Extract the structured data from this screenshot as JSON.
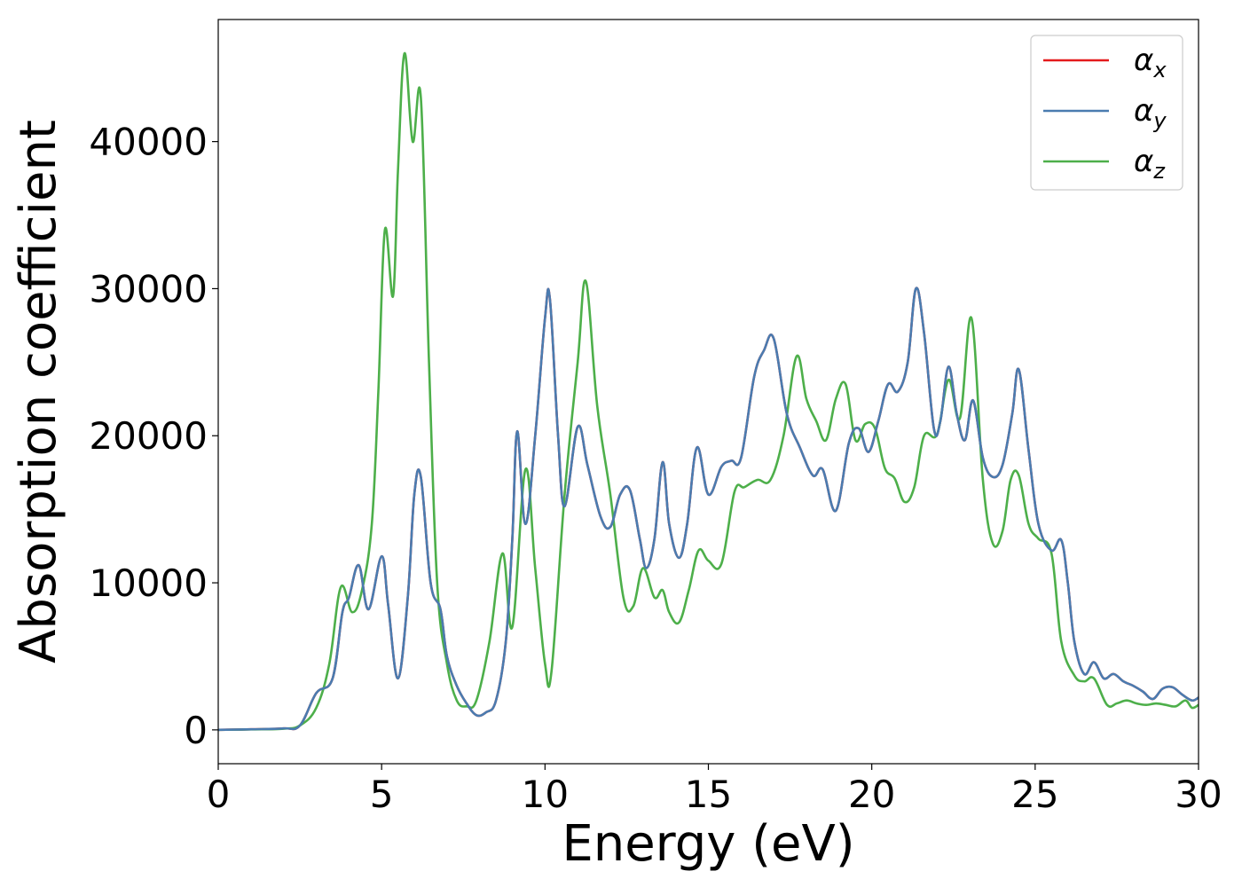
{
  "chart_data": {
    "type": "line",
    "title": "",
    "xlabel": "Energy (eV)",
    "ylabel": "Absorption coefficient",
    "xlim": [
      0,
      30
    ],
    "ylim": [
      -2300,
      48300
    ],
    "xticks": [
      0,
      5,
      10,
      15,
      20,
      25,
      30
    ],
    "yticks": [
      0,
      10000,
      20000,
      30000,
      40000
    ],
    "xtick_labels": [
      "0",
      "5",
      "10",
      "15",
      "20",
      "25",
      "30"
    ],
    "ytick_labels": [
      "0",
      "10000",
      "20000",
      "30000",
      "40000"
    ],
    "legend_position": "top-right",
    "series": [
      {
        "name": "αx",
        "symbol": "α",
        "subscript": "x",
        "color": "#e41a1c",
        "x": [
          0,
          1,
          2,
          2.5,
          3,
          3.5,
          3.8,
          4.0,
          4.3,
          4.6,
          5.0,
          5.2,
          5.5,
          5.8,
          6.0,
          6.2,
          6.5,
          6.8,
          7.0,
          7.3,
          7.6,
          7.9,
          8.2,
          8.5,
          8.8,
          9.0,
          9.15,
          9.4,
          9.7,
          10.0,
          10.15,
          10.4,
          10.6,
          11.0,
          11.3,
          11.7,
          12.0,
          12.3,
          12.6,
          12.9,
          13.1,
          13.35,
          13.6,
          13.8,
          14.1,
          14.35,
          14.65,
          15.0,
          15.4,
          15.7,
          16.0,
          16.4,
          16.7,
          17.0,
          17.4,
          17.8,
          18.2,
          18.5,
          18.9,
          19.3,
          19.6,
          19.9,
          20.2,
          20.5,
          20.8,
          21.1,
          21.35,
          21.6,
          21.9,
          22.1,
          22.35,
          22.6,
          22.85,
          23.1,
          23.4,
          23.7,
          24.0,
          24.3,
          24.5,
          24.8,
          25.1,
          25.5,
          25.8,
          26.0,
          26.2,
          26.5,
          26.8,
          27.1,
          27.4,
          27.7,
          28.0,
          28.3,
          28.6,
          28.9,
          29.2,
          29.5,
          29.8,
          30.0
        ],
        "y": [
          0,
          40,
          100,
          300,
          2500,
          3500,
          8000,
          9000,
          11200,
          8200,
          11800,
          8500,
          3500,
          9000,
          16000,
          17200,
          10000,
          8200,
          5000,
          3000,
          1800,
          1000,
          1200,
          2000,
          6000,
          13000,
          20300,
          14000,
          20000,
          28000,
          29300,
          20000,
          15200,
          20600,
          18000,
          14500,
          13800,
          16000,
          16300,
          13000,
          11000,
          13000,
          18200,
          14000,
          11700,
          14000,
          19200,
          16000,
          17900,
          18300,
          18500,
          24000,
          25800,
          26600,
          21500,
          19200,
          17300,
          17700,
          14900,
          19500,
          20500,
          18900,
          21000,
          23500,
          23000,
          25000,
          30000,
          27000,
          20500,
          21000,
          24700,
          21500,
          19700,
          22400,
          18500,
          17200,
          18000,
          21500,
          24500,
          19000,
          14000,
          12200,
          12900,
          10000,
          6000,
          3800,
          4600,
          3500,
          3800,
          3300,
          3000,
          2600,
          2100,
          2800,
          2900,
          2400,
          2000,
          2200
        ]
      },
      {
        "name": "αy",
        "symbol": "α",
        "subscript": "y",
        "color": "#4a7cb0",
        "x": [
          0,
          1,
          2,
          2.5,
          3,
          3.5,
          3.8,
          4.0,
          4.3,
          4.6,
          5.0,
          5.2,
          5.5,
          5.8,
          6.0,
          6.2,
          6.5,
          6.8,
          7.0,
          7.3,
          7.6,
          7.9,
          8.2,
          8.5,
          8.8,
          9.0,
          9.15,
          9.4,
          9.7,
          10.0,
          10.15,
          10.4,
          10.6,
          11.0,
          11.3,
          11.7,
          12.0,
          12.3,
          12.6,
          12.9,
          13.1,
          13.35,
          13.6,
          13.8,
          14.1,
          14.35,
          14.65,
          15.0,
          15.4,
          15.7,
          16.0,
          16.4,
          16.7,
          17.0,
          17.4,
          17.8,
          18.2,
          18.5,
          18.9,
          19.3,
          19.6,
          19.9,
          20.2,
          20.5,
          20.8,
          21.1,
          21.35,
          21.6,
          21.9,
          22.1,
          22.35,
          22.6,
          22.85,
          23.1,
          23.4,
          23.7,
          24.0,
          24.3,
          24.5,
          24.8,
          25.1,
          25.5,
          25.8,
          26.0,
          26.2,
          26.5,
          26.8,
          27.1,
          27.4,
          27.7,
          28.0,
          28.3,
          28.6,
          28.9,
          29.2,
          29.5,
          29.8,
          30.0
        ],
        "y": [
          0,
          40,
          100,
          300,
          2500,
          3500,
          8000,
          9000,
          11200,
          8200,
          11800,
          8500,
          3500,
          9000,
          16000,
          17200,
          10000,
          8200,
          5000,
          3000,
          1800,
          1000,
          1200,
          2000,
          6000,
          13000,
          20300,
          14000,
          20000,
          28000,
          29300,
          20000,
          15200,
          20600,
          18000,
          14500,
          13800,
          16000,
          16300,
          13000,
          11000,
          13000,
          18200,
          14000,
          11700,
          14000,
          19200,
          16000,
          17900,
          18300,
          18500,
          24000,
          25800,
          26600,
          21500,
          19200,
          17300,
          17700,
          14900,
          19500,
          20500,
          18900,
          21000,
          23500,
          23000,
          25000,
          30000,
          27000,
          20500,
          21000,
          24700,
          21500,
          19700,
          22400,
          18500,
          17200,
          18000,
          21500,
          24500,
          19000,
          14000,
          12200,
          12900,
          10000,
          6000,
          3800,
          4600,
          3500,
          3800,
          3300,
          3000,
          2600,
          2100,
          2800,
          2900,
          2400,
          2000,
          2200
        ]
      },
      {
        "name": "αz",
        "symbol": "α",
        "subscript": "z",
        "color": "#4daf4a",
        "x": [
          0,
          1,
          2,
          2.5,
          3,
          3.4,
          3.75,
          4.1,
          4.4,
          4.7,
          4.9,
          5.1,
          5.35,
          5.5,
          5.7,
          5.95,
          6.2,
          6.45,
          6.7,
          7.0,
          7.3,
          7.6,
          7.9,
          8.3,
          8.7,
          9.0,
          9.4,
          9.7,
          10.0,
          10.2,
          10.6,
          11.0,
          11.25,
          11.6,
          12.0,
          12.4,
          12.7,
          13.0,
          13.35,
          13.6,
          13.8,
          14.1,
          14.4,
          14.7,
          15.0,
          15.4,
          15.8,
          16.1,
          16.5,
          16.9,
          17.3,
          17.7,
          18.0,
          18.3,
          18.6,
          18.9,
          19.2,
          19.5,
          19.8,
          20.1,
          20.4,
          20.7,
          21.0,
          21.3,
          21.6,
          22.0,
          22.35,
          22.7,
          23.05,
          23.4,
          23.7,
          24.0,
          24.25,
          24.5,
          24.8,
          25.1,
          25.5,
          25.8,
          26.2,
          26.5,
          26.8,
          27.2,
          27.5,
          27.8,
          28.1,
          28.4,
          28.7,
          29.0,
          29.3,
          29.6,
          29.8,
          30.0
        ],
        "y": [
          0,
          30,
          80,
          300,
          1500,
          4500,
          9700,
          8000,
          9500,
          14000,
          23000,
          34000,
          29500,
          38000,
          46000,
          40000,
          43000,
          25000,
          10000,
          4500,
          2000,
          1600,
          2000,
          6000,
          12000,
          7000,
          17700,
          11000,
          4500,
          4000,
          16000,
          25000,
          30500,
          22000,
          16000,
          9000,
          8400,
          11000,
          9000,
          9500,
          8000,
          7300,
          9500,
          12200,
          11500,
          11300,
          16200,
          16500,
          17000,
          17000,
          20000,
          25400,
          22500,
          21000,
          19700,
          22500,
          23500,
          19700,
          20800,
          20500,
          17800,
          17100,
          15500,
          16500,
          20000,
          20100,
          23800,
          21200,
          28000,
          17000,
          12700,
          13500,
          17000,
          17300,
          14000,
          13000,
          12000,
          6000,
          3700,
          3300,
          3500,
          1700,
          1800,
          2000,
          1800,
          1700,
          1800,
          1700,
          1600,
          2000,
          1500,
          1700
        ]
      }
    ]
  }
}
